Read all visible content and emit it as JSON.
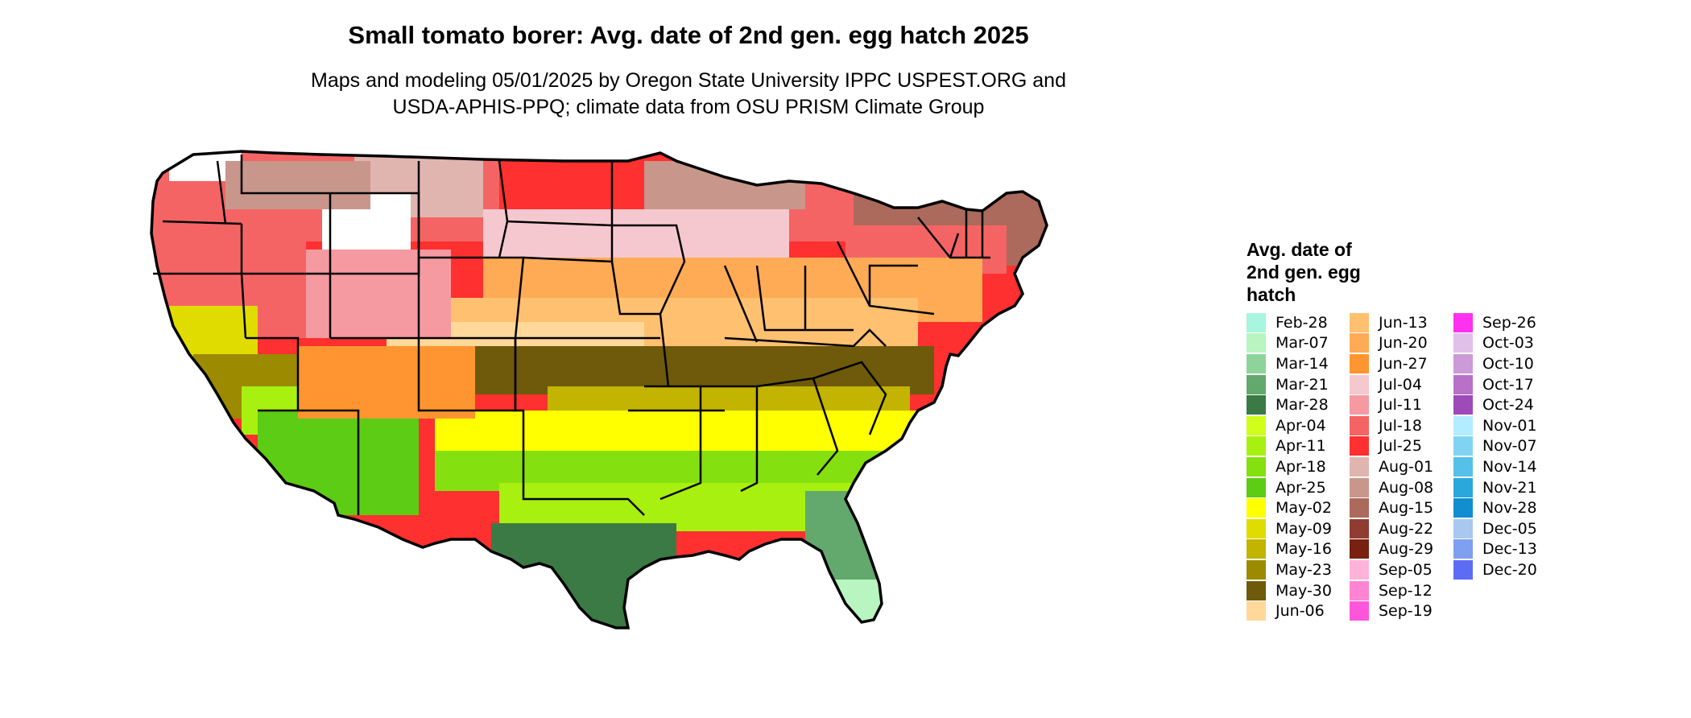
{
  "title": "Small tomato borer: Avg. date of 2nd gen. egg hatch 2025",
  "subtitle_line1": "Maps and modeling 05/01/2025 by Oregon State University IPPC USPEST.ORG and",
  "subtitle_line2": "USDA-APHIS-PPQ; climate data from OSU PRISM Climate Group",
  "legend": {
    "title_line1": "Avg. date of",
    "title_line2": "2nd gen. egg",
    "title_line3": "hatch",
    "columns": [
      [
        {
          "label": "Feb-28",
          "color": "#a8f5e0"
        },
        {
          "label": "Mar-07",
          "color": "#b8f5c0"
        },
        {
          "label": "Mar-14",
          "color": "#8ed49a"
        },
        {
          "label": "Mar-21",
          "color": "#63a86d"
        },
        {
          "label": "Mar-28",
          "color": "#3b7a45"
        },
        {
          "label": "Apr-04",
          "color": "#cfff1a"
        },
        {
          "label": "Apr-11",
          "color": "#a8f010"
        },
        {
          "label": "Apr-18",
          "color": "#85e010"
        },
        {
          "label": "Apr-25",
          "color": "#5ccc14"
        },
        {
          "label": "May-02",
          "color": "#ffff00"
        },
        {
          "label": "May-09",
          "color": "#e0dc00"
        },
        {
          "label": "May-16",
          "color": "#c2b400"
        },
        {
          "label": "May-23",
          "color": "#9c8a00"
        },
        {
          "label": "May-30",
          "color": "#6e5a0a"
        },
        {
          "label": "Jun-06",
          "color": "#ffd89a"
        }
      ],
      [
        {
          "label": "Jun-13",
          "color": "#ffc070"
        },
        {
          "label": "Jun-20",
          "color": "#ffab55"
        },
        {
          "label": "Jun-27",
          "color": "#ff9530"
        },
        {
          "label": "Jul-04",
          "color": "#f5c8cf"
        },
        {
          "label": "Jul-11",
          "color": "#f59aa0"
        },
        {
          "label": "Jul-18",
          "color": "#f56465"
        },
        {
          "label": "Jul-25",
          "color": "#ff3030"
        },
        {
          "label": "Aug-01",
          "color": "#e0b5b0"
        },
        {
          "label": "Aug-08",
          "color": "#c8968a"
        },
        {
          "label": "Aug-15",
          "color": "#ab6a5c"
        },
        {
          "label": "Aug-22",
          "color": "#913c30"
        },
        {
          "label": "Aug-29",
          "color": "#7a2010"
        },
        {
          "label": "Sep-05",
          "color": "#ffb3da"
        },
        {
          "label": "Sep-12",
          "color": "#ff85d2"
        },
        {
          "label": "Sep-19",
          "color": "#ff55dc"
        }
      ],
      [
        {
          "label": "Sep-26",
          "color": "#ff30f0"
        },
        {
          "label": "Oct-03",
          "color": "#e0c0e8"
        },
        {
          "label": "Oct-10",
          "color": "#cc9ad8"
        },
        {
          "label": "Oct-17",
          "color": "#b870c8"
        },
        {
          "label": "Oct-24",
          "color": "#9e4ab8"
        },
        {
          "label": "Nov-01",
          "color": "#b3ecff"
        },
        {
          "label": "Nov-07",
          "color": "#80d4f2"
        },
        {
          "label": "Nov-14",
          "color": "#55c0e8"
        },
        {
          "label": "Nov-21",
          "color": "#2aa8dc"
        },
        {
          "label": "Nov-28",
          "color": "#108ed0"
        },
        {
          "label": "Dec-05",
          "color": "#a8c8f0"
        },
        {
          "label": "Dec-13",
          "color": "#7f9ff0"
        },
        {
          "label": "Dec-20",
          "color": "#5c6cf5"
        }
      ]
    ]
  }
}
